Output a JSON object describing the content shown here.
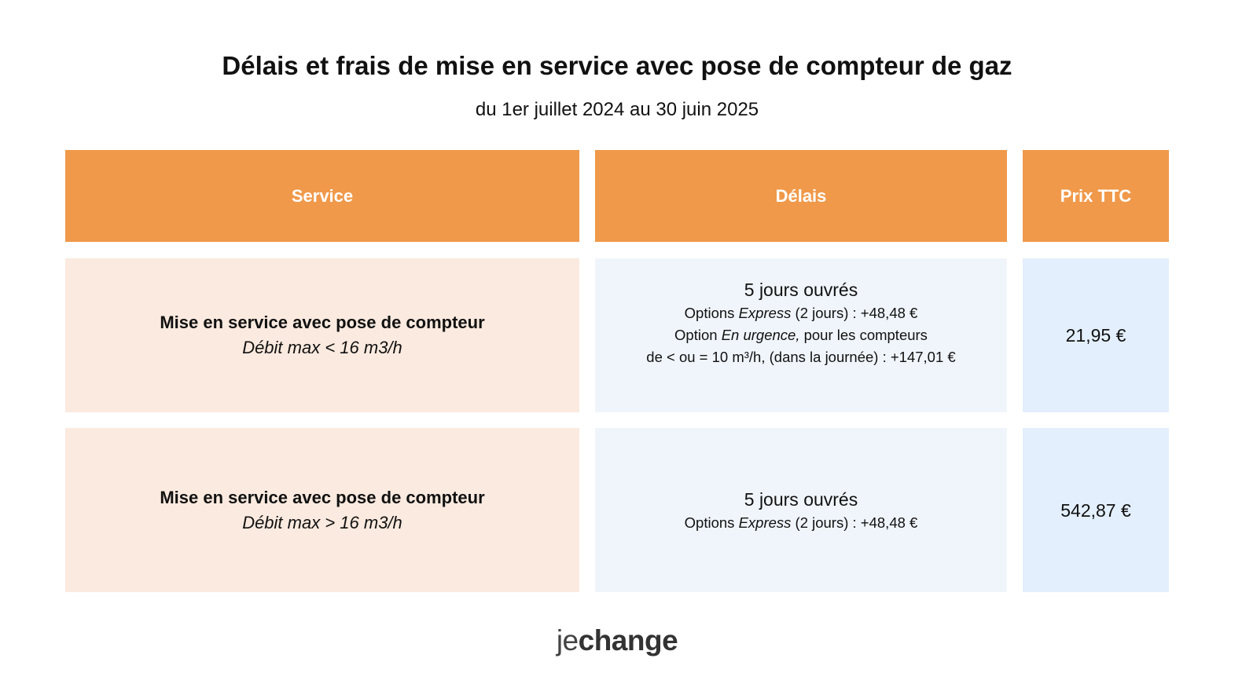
{
  "title": "Délais et frais de mise en service avec pose de compteur de gaz",
  "subtitle": "du 1er juillet 2024 au 30 juin 2025",
  "table": {
    "headers": {
      "service": "Service",
      "delais": "Délais",
      "prix": "Prix TTC"
    },
    "rows": [
      {
        "service": "Mise en service avec pose de compteur",
        "debit": "Débit max < 16 m3/h",
        "delai": "5 jours ouvrés",
        "express": {
          "prefix": "Options ",
          "em": "Express",
          "suffix": " (2 jours) : +48,48 €"
        },
        "urgence": {
          "prefix": "Option ",
          "em": "En urgence,",
          "suffix": " pour les compteurs"
        },
        "urgence_line2": "de < ou = 10 m³/h, (dans la journée) : +147,01 €",
        "prix": "21,95 €"
      },
      {
        "service": "Mise en service avec pose de compteur",
        "debit": "Débit max > 16 m3/h",
        "delai": "5 jours ouvrés",
        "express": {
          "prefix": "Options ",
          "em": "Express",
          "suffix": " (2 jours) : +48,48 €"
        },
        "prix": "542,87 €"
      }
    ]
  },
  "logo": {
    "je": "je",
    "change": "change"
  },
  "colors": {
    "header_bg": "#F0994A",
    "service_bg": "#FBEADF",
    "delais_bg": "#F0F5FB",
    "prix_bg": "#E3EFFC",
    "text": "#111111",
    "header_text": "#FFFFFF"
  }
}
